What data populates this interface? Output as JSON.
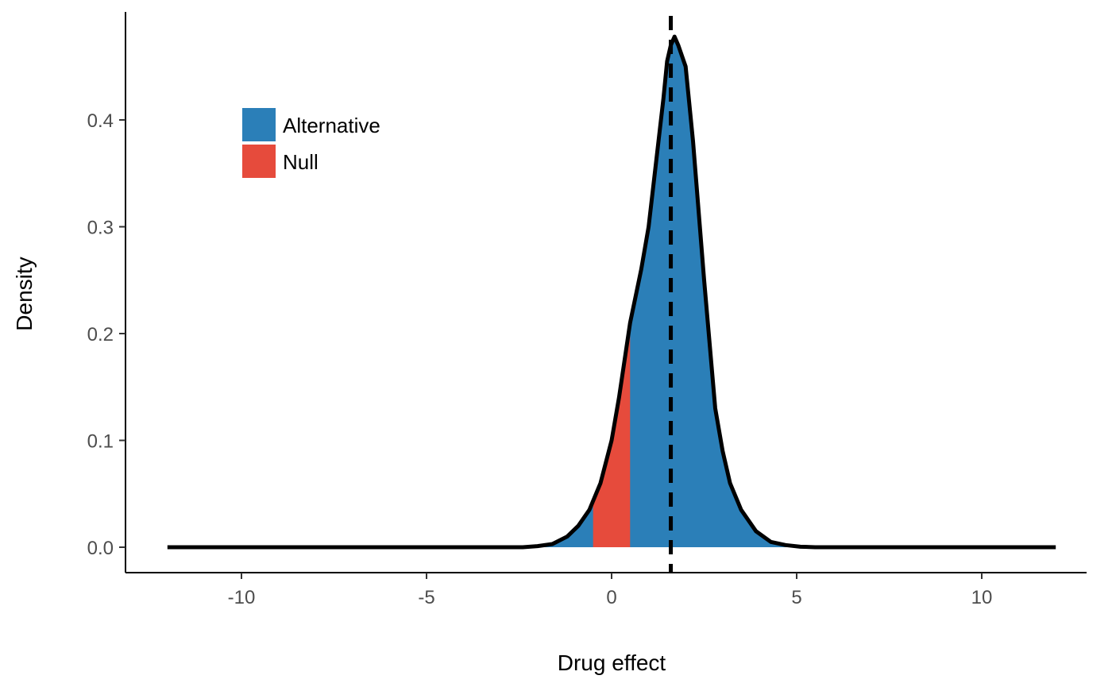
{
  "chart_data": {
    "type": "area",
    "xlabel": "Drug effect",
    "ylabel": "Density",
    "xlim": [
      -12,
      12
    ],
    "ylim": [
      0,
      0.48
    ],
    "xticks": [
      -10,
      -5,
      0,
      5,
      10
    ],
    "yticks": [
      0.0,
      0.1,
      0.2,
      0.3,
      0.4
    ],
    "xtick_labels": [
      "-10",
      "-5",
      "0",
      "5",
      "10"
    ],
    "ytick_labels": [
      "0.0",
      "0.1",
      "0.2",
      "0.3",
      "0.4"
    ],
    "grid": false,
    "legend_position": "top-left",
    "vline": {
      "x": 1.6,
      "style": "dashed"
    },
    "curve": {
      "x": [
        -12,
        -2.4,
        -2.0,
        -1.6,
        -1.2,
        -0.9,
        -0.6,
        -0.3,
        0.0,
        0.2,
        0.5,
        0.8,
        1.0,
        1.2,
        1.4,
        1.5,
        1.6,
        1.7,
        1.8,
        2.0,
        2.2,
        2.5,
        2.8,
        3.0,
        3.2,
        3.5,
        3.9,
        4.3,
        4.7,
        5.1,
        5.5,
        12
      ],
      "y": [
        0.0,
        0.0,
        0.001,
        0.003,
        0.01,
        0.02,
        0.035,
        0.06,
        0.1,
        0.14,
        0.21,
        0.26,
        0.3,
        0.36,
        0.42,
        0.455,
        0.47,
        0.478,
        0.47,
        0.45,
        0.38,
        0.25,
        0.13,
        0.09,
        0.06,
        0.035,
        0.015,
        0.005,
        0.002,
        0.0005,
        0.0,
        0.0
      ]
    },
    "series": [
      {
        "name": "Alternative",
        "color": "#2b7fb8",
        "range": [
          -12,
          12
        ]
      },
      {
        "name": "Null",
        "color": "#e64b3c",
        "range": [
          -0.5,
          0.5
        ]
      }
    ]
  }
}
